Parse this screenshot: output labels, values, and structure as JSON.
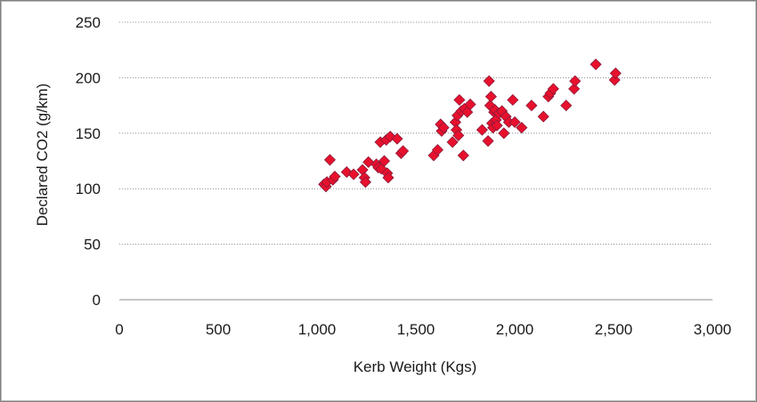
{
  "chart_data": {
    "type": "scatter",
    "title": "",
    "xlabel": "Kerb Weight (Kgs)",
    "ylabel": "Declared CO2 (g/km)",
    "xlim": [
      0,
      3000
    ],
    "ylim": [
      0,
      250
    ],
    "xticks": [
      0,
      500,
      1000,
      1500,
      2000,
      2500,
      3000
    ],
    "xtick_labels": [
      "0",
      "500",
      "1,000",
      "1,500",
      "2,000",
      "2,500",
      "3,000"
    ],
    "yticks": [
      0,
      50,
      100,
      150,
      200,
      250
    ],
    "ytick_labels": [
      "0",
      "50",
      "100",
      "150",
      "200",
      "250"
    ],
    "grid": "horizontal",
    "legend": "none",
    "marker": "diamond",
    "marker_color": "#e8112d",
    "marker_edge": "#8b1a3a",
    "points": [
      [
        1035,
        104
      ],
      [
        1045,
        102
      ],
      [
        1050,
        106
      ],
      [
        1065,
        126
      ],
      [
        1080,
        108
      ],
      [
        1090,
        111
      ],
      [
        1150,
        115
      ],
      [
        1185,
        113
      ],
      [
        1230,
        117
      ],
      [
        1240,
        110
      ],
      [
        1245,
        106
      ],
      [
        1260,
        124
      ],
      [
        1300,
        122
      ],
      [
        1310,
        119
      ],
      [
        1320,
        142
      ],
      [
        1325,
        118
      ],
      [
        1340,
        125
      ],
      [
        1350,
        144
      ],
      [
        1355,
        114
      ],
      [
        1360,
        110
      ],
      [
        1370,
        147
      ],
      [
        1405,
        145
      ],
      [
        1425,
        132
      ],
      [
        1435,
        134
      ],
      [
        1590,
        130
      ],
      [
        1610,
        135
      ],
      [
        1625,
        158
      ],
      [
        1630,
        152
      ],
      [
        1640,
        155
      ],
      [
        1685,
        142
      ],
      [
        1700,
        160
      ],
      [
        1705,
        153
      ],
      [
        1710,
        166
      ],
      [
        1715,
        148
      ],
      [
        1720,
        180
      ],
      [
        1730,
        170
      ],
      [
        1740,
        130
      ],
      [
        1745,
        172
      ],
      [
        1760,
        169
      ],
      [
        1775,
        176
      ],
      [
        1835,
        153
      ],
      [
        1865,
        143
      ],
      [
        1870,
        197
      ],
      [
        1875,
        175
      ],
      [
        1880,
        183
      ],
      [
        1885,
        159
      ],
      [
        1890,
        155
      ],
      [
        1895,
        169
      ],
      [
        1900,
        171
      ],
      [
        1905,
        162
      ],
      [
        1910,
        157
      ],
      [
        1920,
        168
      ],
      [
        1935,
        170
      ],
      [
        1945,
        150
      ],
      [
        1955,
        165
      ],
      [
        1970,
        160
      ],
      [
        1990,
        180
      ],
      [
        2000,
        160
      ],
      [
        2035,
        155
      ],
      [
        2085,
        175
      ],
      [
        2145,
        165
      ],
      [
        2170,
        183
      ],
      [
        2180,
        186
      ],
      [
        2195,
        190
      ],
      [
        2260,
        175
      ],
      [
        2300,
        190
      ],
      [
        2305,
        197
      ],
      [
        2410,
        212
      ],
      [
        2505,
        198
      ],
      [
        2510,
        204
      ]
    ]
  }
}
